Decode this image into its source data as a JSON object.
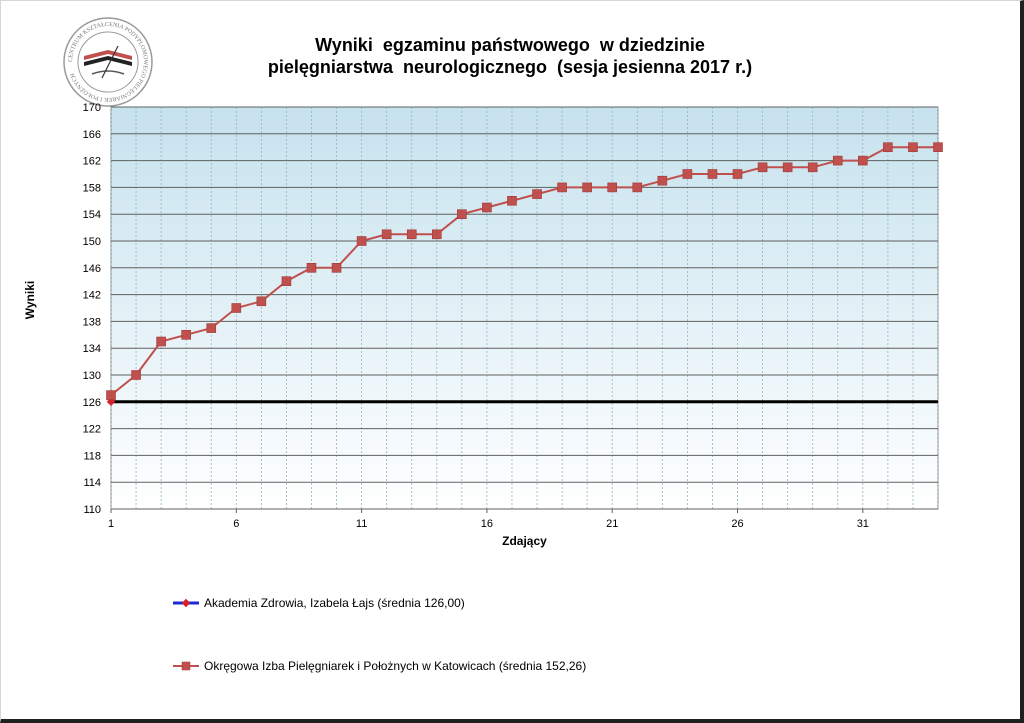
{
  "logo": {
    "icon": "quill-seal-logo",
    "text": "CENTRUM KSZTAŁCENIA PODYPLOMOWEGO PIELĘGNIAREK I POŁOŻNYCH"
  },
  "chart_data": {
    "type": "line",
    "title_line1": "Wyniki  egzaminu państwowego  w dziedzinie",
    "title_line2": "pielęgniarstwa  neurologicznego  (sesja jesienna 2017 r.)",
    "xlabel": "Zdający",
    "ylabel": "Wyniki",
    "xlim": [
      1,
      34
    ],
    "ylim": [
      110,
      170
    ],
    "x_ticks": [
      1,
      6,
      11,
      16,
      21,
      26,
      31
    ],
    "y_ticks": [
      110,
      114,
      118,
      122,
      126,
      130,
      134,
      138,
      142,
      146,
      150,
      154,
      158,
      162,
      166,
      170
    ],
    "grid": true,
    "legend_position": "bottom",
    "series": [
      {
        "name": "Akademia Zdrowia, Izabela Łajs (średnia 126,00)",
        "color": "#000000",
        "legend_color": "#1a2ad6",
        "marker": "diamond",
        "x": [
          1
        ],
        "values": [
          126
        ],
        "reference_line": 126
      },
      {
        "name": "Okręgowa Izba Pielęgniarek i Położnych w Katowicach (średnia 152,26)",
        "color": "#c0504d",
        "marker_color": "#c0504d",
        "marker": "square",
        "x": [
          1,
          2,
          3,
          4,
          5,
          6,
          7,
          8,
          9,
          10,
          11,
          12,
          13,
          14,
          15,
          16,
          17,
          18,
          19,
          20,
          21,
          22,
          23,
          24,
          25,
          26,
          27,
          28,
          29,
          30,
          31,
          32,
          33,
          34
        ],
        "values": [
          127,
          130,
          135,
          136,
          137,
          140,
          141,
          144,
          146,
          146,
          150,
          151,
          151,
          151,
          154,
          155,
          156,
          157,
          158,
          158,
          158,
          158,
          159,
          160,
          160,
          160,
          161,
          161,
          161,
          162,
          162,
          164,
          164,
          164
        ]
      }
    ]
  }
}
